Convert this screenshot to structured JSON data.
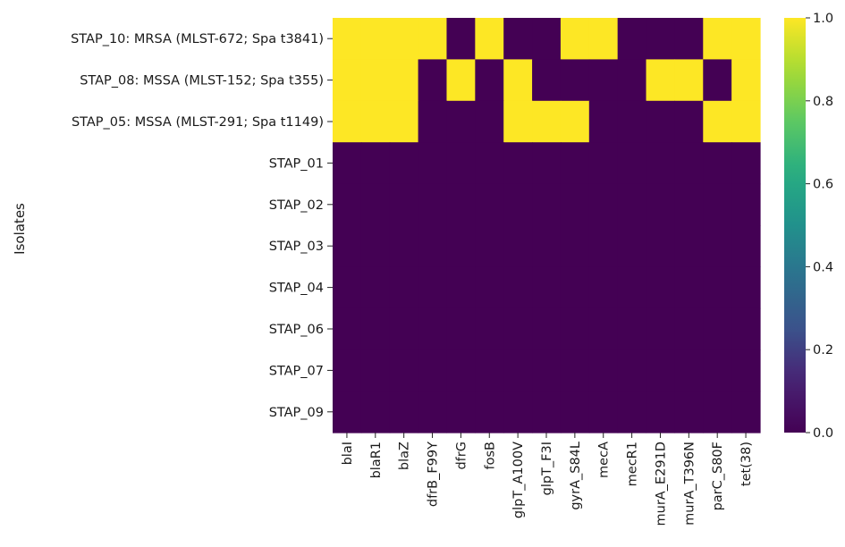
{
  "chart_data": {
    "type": "heatmap",
    "title": "",
    "xlabel": "",
    "ylabel": "Isolates",
    "x_categories": [
      "blaI",
      "blaR1",
      "blaZ",
      "dfrB_F99Y",
      "dfrG",
      "fosB",
      "glpT_A100V",
      "glpT_F3I",
      "gyrA_S84L",
      "mecA",
      "mecR1",
      "murA_E291D",
      "murA_T396N",
      "parC_S80F",
      "tet(38)"
    ],
    "y_categories": [
      "STAP_10: MRSA (MLST-672; Spa t3841)",
      "STAP_08: MSSA (MLST-152; Spa t355)",
      "STAP_05: MSSA (MLST-291; Spa t1149)",
      "STAP_01",
      "STAP_02",
      "STAP_03",
      "STAP_04",
      "STAP_06",
      "STAP_07",
      "STAP_09"
    ],
    "values": [
      [
        1,
        1,
        1,
        1,
        0,
        1,
        0,
        0,
        1,
        1,
        0,
        0,
        0,
        1,
        1
      ],
      [
        1,
        1,
        1,
        0,
        1,
        0,
        1,
        0,
        0,
        0,
        0,
        1,
        1,
        0,
        1
      ],
      [
        1,
        1,
        1,
        0,
        0,
        0,
        1,
        1,
        1,
        0,
        0,
        0,
        0,
        1,
        1
      ],
      [
        0,
        0,
        0,
        0,
        0,
        0,
        0,
        0,
        0,
        0,
        0,
        0,
        0,
        0,
        0
      ],
      [
        0,
        0,
        0,
        0,
        0,
        0,
        0,
        0,
        0,
        0,
        0,
        0,
        0,
        0,
        0
      ],
      [
        0,
        0,
        0,
        0,
        0,
        0,
        0,
        0,
        0,
        0,
        0,
        0,
        0,
        0,
        0
      ],
      [
        0,
        0,
        0,
        0,
        0,
        0,
        0,
        0,
        0,
        0,
        0,
        0,
        0,
        0,
        0
      ],
      [
        0,
        0,
        0,
        0,
        0,
        0,
        0,
        0,
        0,
        0,
        0,
        0,
        0,
        0,
        0
      ],
      [
        0,
        0,
        0,
        0,
        0,
        0,
        0,
        0,
        0,
        0,
        0,
        0,
        0,
        0,
        0
      ],
      [
        0,
        0,
        0,
        0,
        0,
        0,
        0,
        0,
        0,
        0,
        0,
        0,
        0,
        0,
        0
      ]
    ],
    "colorscale": "viridis",
    "colors": {
      "low": "#440154",
      "high": "#fde725"
    },
    "vmin": 0,
    "vmax": 1,
    "colorbar_ticks": [
      0,
      0.2,
      0.4,
      0.6,
      0.8,
      1
    ],
    "colorbar_tick_labels": [
      "0.0",
      "0.2",
      "0.4",
      "0.6",
      "0.8",
      "1.0"
    ],
    "grid": false,
    "legend": "colorbar-right"
  }
}
